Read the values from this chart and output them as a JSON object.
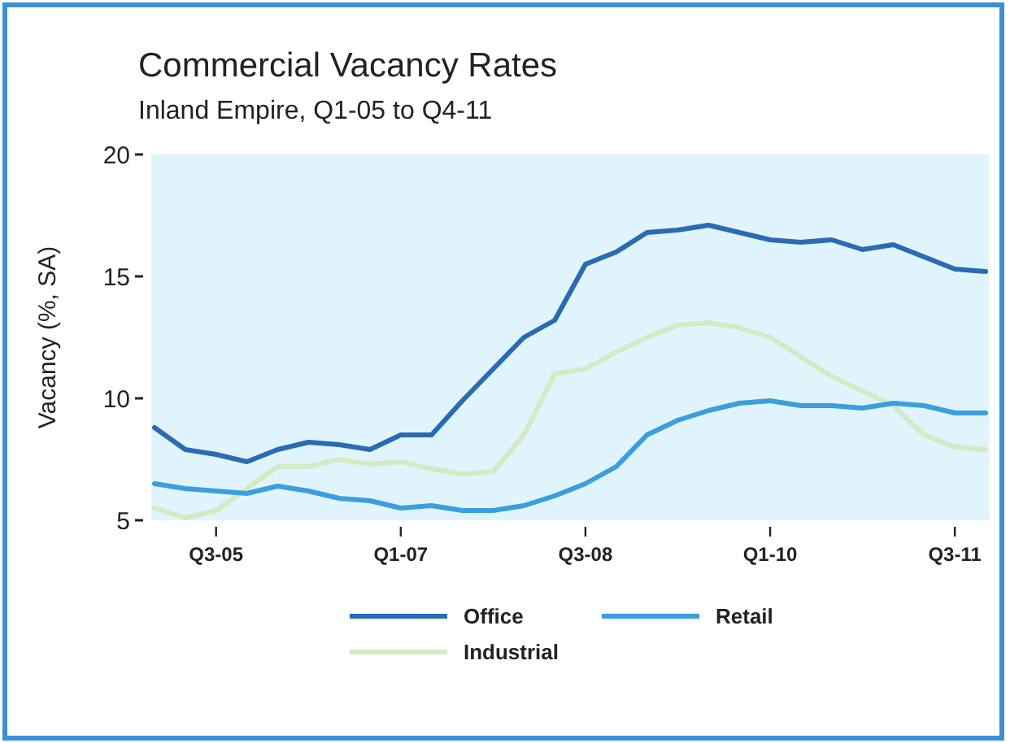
{
  "chart_data": {
    "type": "line",
    "title": "Commercial Vacancy Rates",
    "subtitle": "Inland Empire, Q1-05 to Q4-11",
    "ylabel": "Vacancy (%, SA)",
    "categories": [
      null,
      null,
      "Q3-05",
      null,
      null,
      null,
      null,
      null,
      "Q1-07",
      null,
      null,
      null,
      null,
      null,
      "Q3-08",
      null,
      null,
      null,
      null,
      null,
      "Q1-10",
      null,
      null,
      null,
      null,
      null,
      "Q3-11",
      null
    ],
    "series": [
      {
        "name": "Office",
        "color": "#2a6bb5",
        "values": [
          8.8,
          7.9,
          7.7,
          7.4,
          7.9,
          8.2,
          8.1,
          7.9,
          8.5,
          8.5,
          9.9,
          11.2,
          12.5,
          13.2,
          15.5,
          16.0,
          16.8,
          16.9,
          17.1,
          16.8,
          16.5,
          16.4,
          16.5,
          16.1,
          16.3,
          15.8,
          15.3,
          15.2
        ]
      },
      {
        "name": "Retail",
        "color": "#3a9ee0",
        "values": [
          6.5,
          6.3,
          6.2,
          6.1,
          6.4,
          6.2,
          5.9,
          5.8,
          5.5,
          5.6,
          5.4,
          5.4,
          5.6,
          6.0,
          6.5,
          7.2,
          8.5,
          9.1,
          9.5,
          9.8,
          9.9,
          9.7,
          9.7,
          9.6,
          9.8,
          9.7,
          9.4,
          9.4
        ]
      },
      {
        "name": "Industrial",
        "color": "#d4e9c4",
        "values": [
          5.5,
          5.1,
          5.4,
          6.3,
          7.2,
          7.2,
          7.5,
          7.3,
          7.4,
          7.1,
          6.9,
          7.0,
          8.5,
          11.0,
          11.2,
          11.9,
          12.5,
          13.0,
          13.1,
          12.9,
          12.5,
          11.7,
          10.9,
          10.3,
          9.7,
          8.5,
          8.0,
          7.9
        ]
      }
    ],
    "ylim": [
      5,
      20
    ],
    "yticks": [
      5,
      10,
      15,
      20
    ],
    "grid": false,
    "legend": "bottom",
    "marker": "none",
    "line_style": "solid"
  }
}
